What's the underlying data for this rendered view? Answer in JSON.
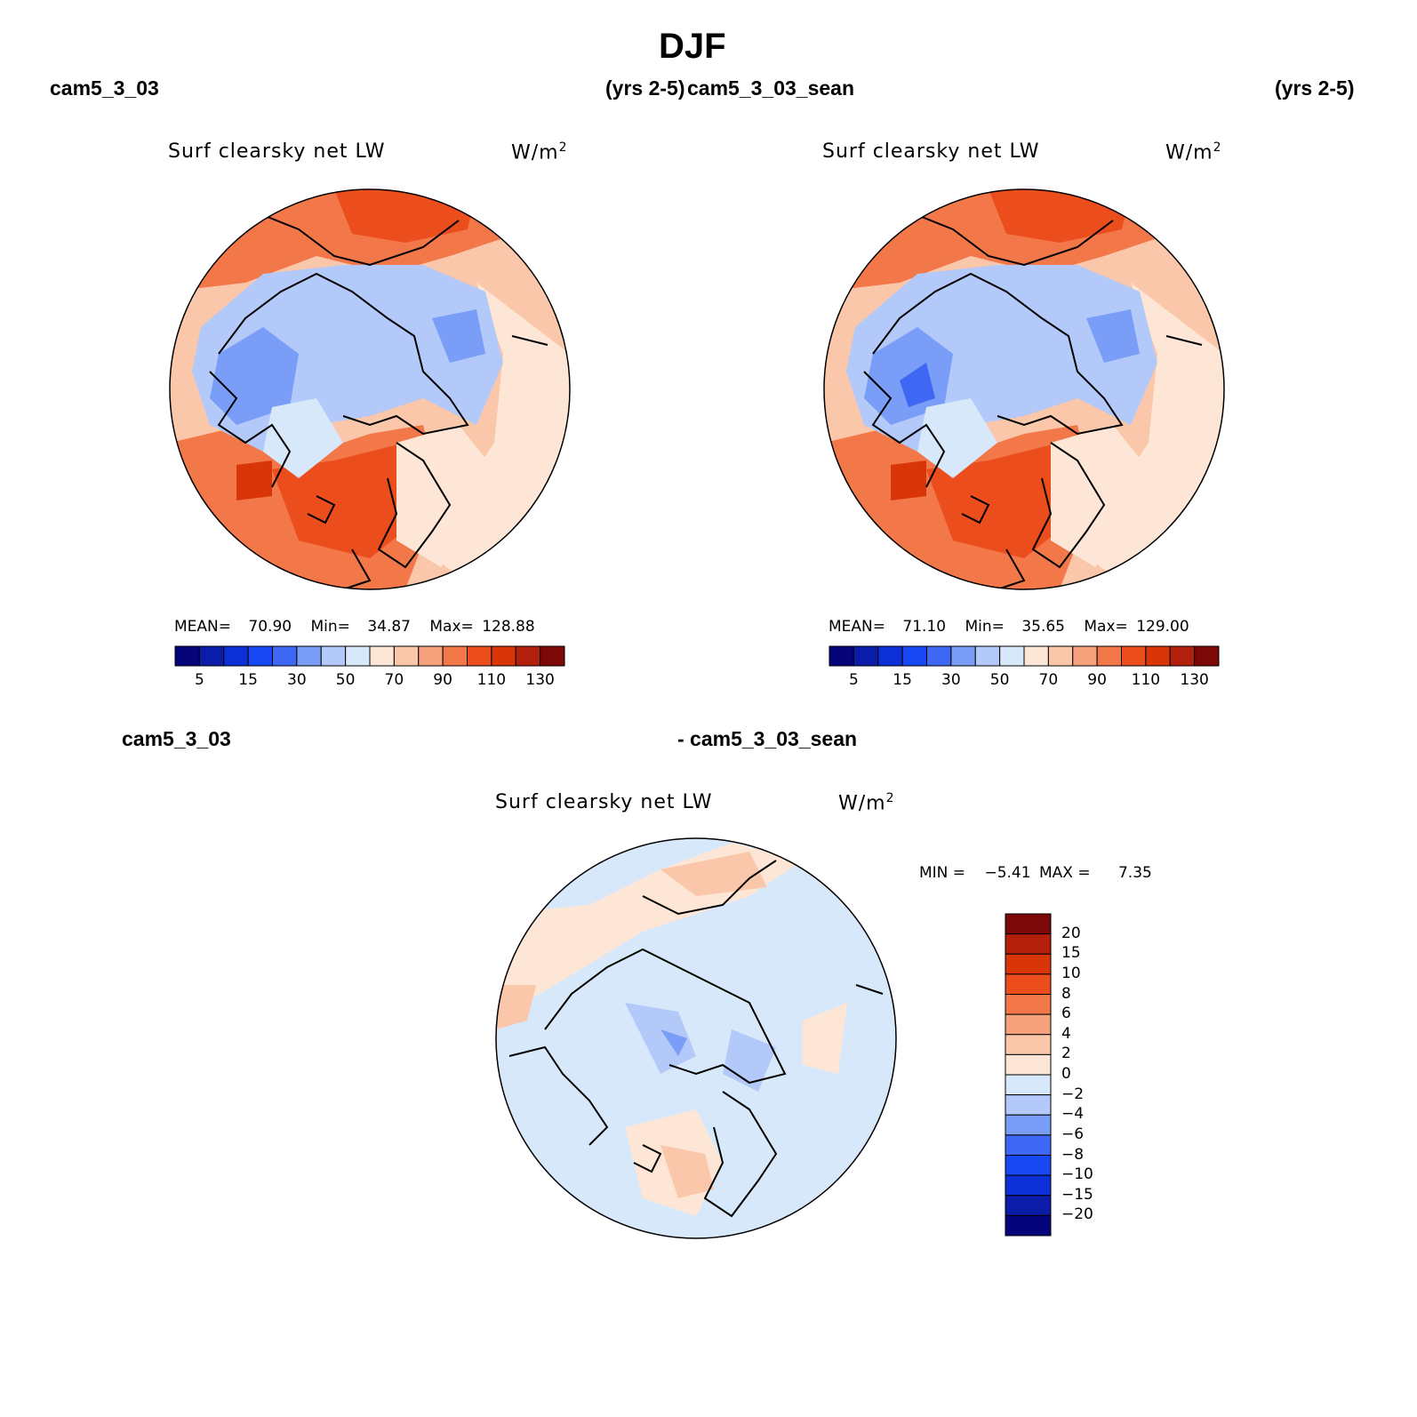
{
  "header": {
    "title": "DJF"
  },
  "panels": [
    {
      "case_name": "cam5_3_03",
      "years": "(yrs 2-5)",
      "variable": "Surf clearsky net LW",
      "units_prefix": "W/m",
      "units_exp": "2",
      "stats": {
        "mean_label": "MEAN=",
        "mean_value": "70.90",
        "min_label": "Min=",
        "min_value": "34.87",
        "max_label": "Max=",
        "max_value": "128.88"
      }
    },
    {
      "case_name": "cam5_3_03_sean",
      "years": "(yrs 2-5)",
      "variable": "Surf clearsky net LW",
      "units_prefix": "W/m",
      "units_exp": "2",
      "stats": {
        "mean_label": "MEAN=",
        "mean_value": "71.10",
        "min_label": "Min=",
        "min_value": "35.65",
        "max_label": "Max=",
        "max_value": "129.00"
      }
    },
    {
      "case_name": "cam5_3_03",
      "case_name_2": "- cam5_3_03_sean",
      "variable": "Surf clearsky net LW",
      "units_prefix": "W/m",
      "units_exp": "2",
      "stats": {
        "min_label": "MIN =",
        "min_value": "−5.41",
        "max_label": "MAX =",
        "max_value": "7.35"
      }
    }
  ],
  "chart_data": [
    {
      "type": "heatmap",
      "projection": "north polar stereographic",
      "title": "Surf clearsky net LW",
      "units": "W/m2",
      "case": "cam5_3_03",
      "period": "DJF (yrs 2-5)",
      "mean": 70.9,
      "min": 34.87,
      "max": 128.88,
      "colorbar": {
        "levels": [
          5,
          10,
          15,
          20,
          30,
          40,
          50,
          60,
          70,
          80,
          90,
          100,
          110,
          120,
          130
        ],
        "tick_labels": [
          "5",
          "15",
          "30",
          "50",
          "70",
          "90",
          "110",
          "130"
        ],
        "colors": [
          "#06047a",
          "#0a1ca8",
          "#0d2fd6",
          "#1848f2",
          "#3e68f4",
          "#7a9df7",
          "#b2c9f9",
          "#d8e8fb",
          "#fde6d6",
          "#fbc7aa",
          "#f7a07c",
          "#f27749",
          "#ec4d1c",
          "#d83508",
          "#b21f0a",
          "#7c0808"
        ]
      }
    },
    {
      "type": "heatmap",
      "projection": "north polar stereographic",
      "title": "Surf clearsky net LW",
      "units": "W/m2",
      "case": "cam5_3_03_sean",
      "period": "DJF (yrs 2-5)",
      "mean": 71.1,
      "min": 35.65,
      "max": 129.0,
      "colorbar": {
        "levels": [
          5,
          10,
          15,
          20,
          30,
          40,
          50,
          60,
          70,
          80,
          90,
          100,
          110,
          120,
          130
        ],
        "tick_labels": [
          "5",
          "15",
          "30",
          "50",
          "70",
          "90",
          "110",
          "130"
        ],
        "colors": [
          "#06047a",
          "#0a1ca8",
          "#0d2fd6",
          "#1848f2",
          "#3e68f4",
          "#7a9df7",
          "#b2c9f9",
          "#d8e8fb",
          "#fde6d6",
          "#fbc7aa",
          "#f7a07c",
          "#f27749",
          "#ec4d1c",
          "#d83508",
          "#b21f0a",
          "#7c0808"
        ]
      }
    },
    {
      "type": "heatmap",
      "projection": "north polar stereographic",
      "title": "Surf clearsky net LW",
      "units": "W/m2",
      "case": "cam5_3_03 - cam5_3_03_sean",
      "min": -5.41,
      "max": 7.35,
      "colorbar": {
        "orientation": "vertical",
        "levels": [
          -20,
          -15,
          -10,
          -8,
          -6,
          -4,
          -2,
          0,
          2,
          4,
          6,
          8,
          10,
          15,
          20
        ],
        "tick_labels": [
          "20",
          "15",
          "10",
          "8",
          "6",
          "4",
          "2",
          "0",
          "−2",
          "−4",
          "−6",
          "−8",
          "−10",
          "−15",
          "−20"
        ],
        "colors_top_to_bottom": [
          "#7c0808",
          "#b21f0a",
          "#d83508",
          "#ec4d1c",
          "#f27749",
          "#f7a07c",
          "#fbc7aa",
          "#fde6d6",
          "#d8e8fb",
          "#b2c9f9",
          "#7a9df7",
          "#3e68f4",
          "#1848f2",
          "#0d2fd6",
          "#0a1ca8",
          "#06047a"
        ]
      }
    }
  ]
}
